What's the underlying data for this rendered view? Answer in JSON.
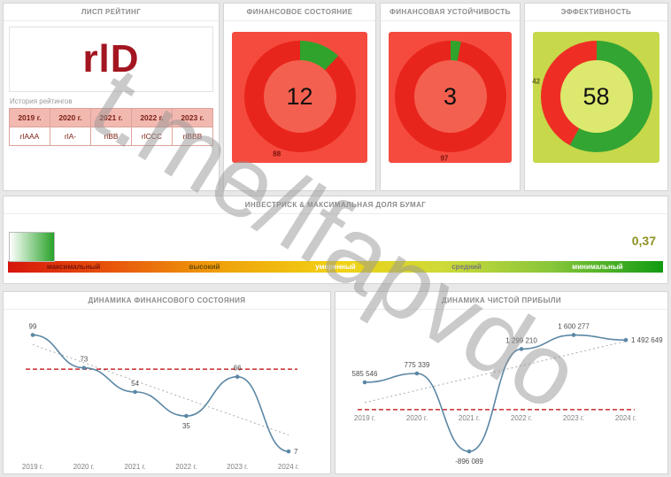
{
  "watermark": "t.me/lfapvdo",
  "rating_panel": {
    "title": "ЛИСП РЕЙТИНГ",
    "rating": "rlD",
    "rating_color": "#a31621",
    "history_label": "История рейтингов",
    "history_headers": [
      "2019 г.",
      "2020 г.",
      "2021 г.",
      "2022 г.",
      "2023 г."
    ],
    "history_values": [
      "rlAAA",
      "rlA-",
      "rlBB",
      "rlCCC",
      "rlBBB"
    ]
  },
  "chart_data": [
    {
      "type": "donut",
      "title": "ФИНАНСОВОЕ СОСТОЯНИЕ",
      "value": 12,
      "remainder": 88,
      "colors": {
        "value": "#2fa32b",
        "remainder": "#e8251c",
        "center": "#f4604f",
        "panel_bg": "#f54b3e",
        "remainder_label": "#7a120c"
      }
    },
    {
      "type": "donut",
      "title": "ФИНАНСОВАЯ УСТОЙЧИВОСТЬ",
      "value": 3,
      "remainder": 97,
      "colors": {
        "value": "#2fa32b",
        "remainder": "#e8251c",
        "center": "#f4604f",
        "panel_bg": "#f54b3e",
        "remainder_label": "#7a120c"
      }
    },
    {
      "type": "donut",
      "title": "ЭФФЕКТИВНОСТЬ",
      "value": 58,
      "remainder": 42,
      "colors": {
        "value": "#33a532",
        "remainder": "#ee2e24",
        "center": "#dce96e",
        "panel_bg": "#c7d84b",
        "remainder_label": "#62621a"
      }
    },
    {
      "type": "scale",
      "title": "ИНВЕСТРИСК & МАКСИМАЛЬНАЯ ДОЛЯ БУМАГ",
      "value": "0,37",
      "value_color": "#8f9222",
      "labels": [
        "максимальный",
        "высокий",
        "умеренный",
        "средний",
        "минимальный"
      ],
      "label_colors": [
        "#7c120b",
        "#6e4a00",
        "#ffffff",
        "#787878",
        "#ffffff"
      ],
      "gradient": [
        "#d6150b",
        "#e8590c",
        "#efa40b",
        "#f2d113",
        "#cdda39",
        "#86c53a",
        "#129b12"
      ]
    },
    {
      "type": "line",
      "title": "ДИНАМИКА ФИНАНСОВОГО СОСТОЯНИЯ",
      "categories": [
        "2019 г.",
        "2020 г.",
        "2021 г.",
        "2022 г.",
        "2023 г.",
        "2024 г."
      ],
      "values": [
        99,
        73,
        54,
        35,
        66,
        7
      ],
      "reference_value": 72,
      "trendline": true,
      "line_color": "#5b87a5"
    },
    {
      "type": "line",
      "title": "ДИНАМИКА ЧИСТОЙ ПРИБЫЛИ",
      "categories": [
        "2019 г.",
        "2020 г.",
        "2021 г.",
        "2022 г.",
        "2023 г.",
        "2024 г."
      ],
      "values": [
        585546,
        775339,
        -896089,
        1299210,
        1600277,
        1492649
      ],
      "value_labels": [
        "585 546",
        "775 339",
        "-896 089",
        "1 299 210",
        "1 600 277",
        "1 492 649"
      ],
      "reference_value": 0,
      "trendline": true,
      "line_color": "#5b87a5"
    }
  ]
}
